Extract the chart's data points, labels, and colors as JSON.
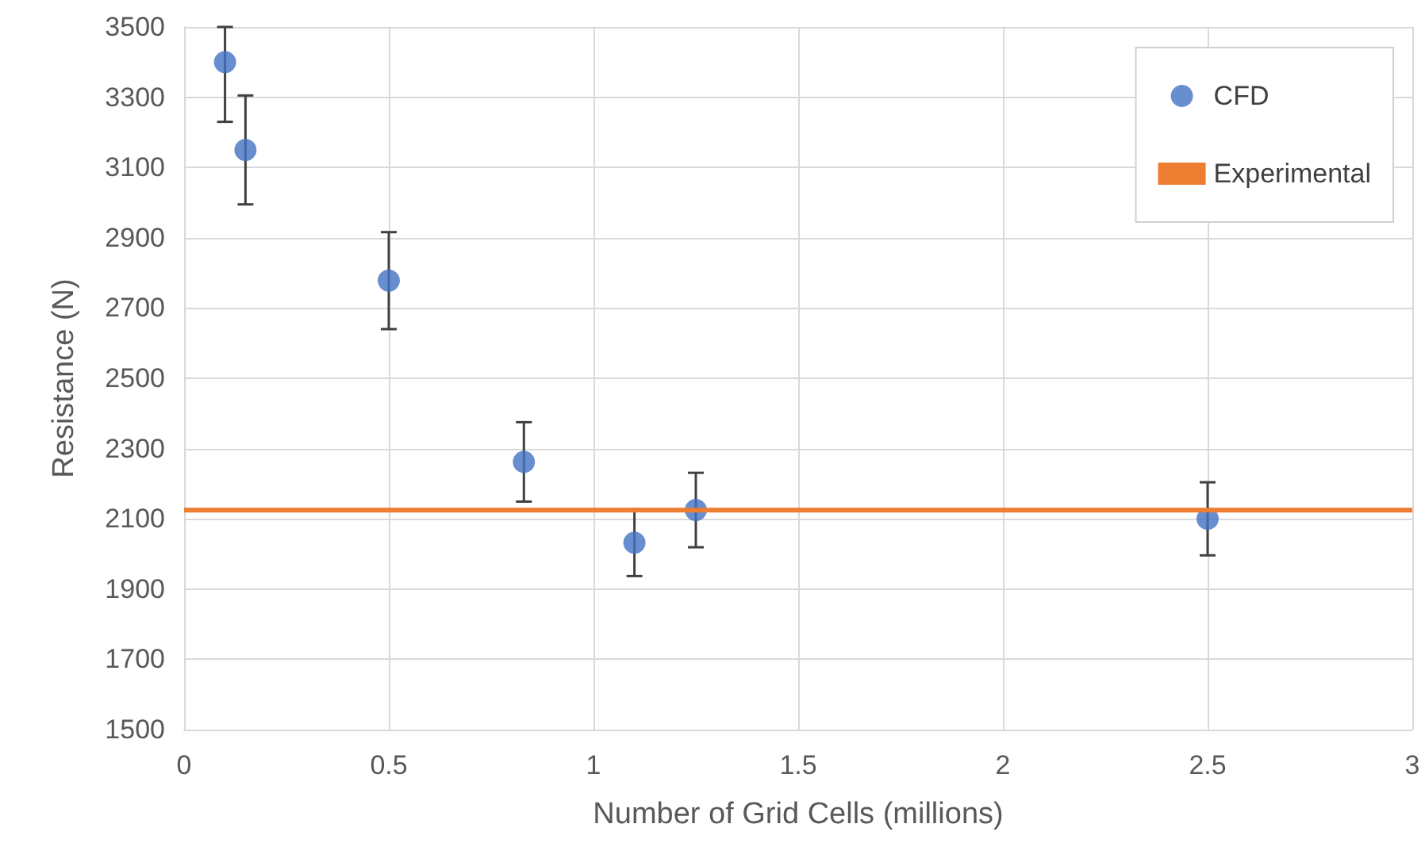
{
  "chart_data": {
    "type": "scatter",
    "xlabel": "Number of Grid Cells (millions)",
    "ylabel": "Resistance (N)",
    "xlim": [
      0,
      3
    ],
    "xticks": [
      0,
      0.5,
      1,
      1.5,
      2,
      2.5,
      3
    ],
    "ylim": [
      1500,
      3500
    ],
    "yticks": [
      1500,
      1700,
      1900,
      2100,
      2300,
      2500,
      2700,
      2900,
      3100,
      3300,
      3500
    ],
    "grid": true,
    "legend": "top right",
    "series": [
      {
        "name": "CFD",
        "marker": "circle",
        "color": "#4472c4",
        "x": [
          0.1,
          0.15,
          0.5,
          0.83,
          1.1,
          1.25,
          2.5
        ],
        "values": [
          3400,
          3150,
          2778,
          2262,
          2032,
          2125,
          2100
        ],
        "errors": [
          [
            3230,
            3500
          ],
          155,
          138,
          113,
          95,
          106,
          104
        ]
      },
      {
        "name": "Experimental",
        "type": "line",
        "marker": "none",
        "color": "#ed7d31",
        "x": [
          0,
          3
        ],
        "values": [
          2125,
          2125
        ]
      }
    ]
  }
}
